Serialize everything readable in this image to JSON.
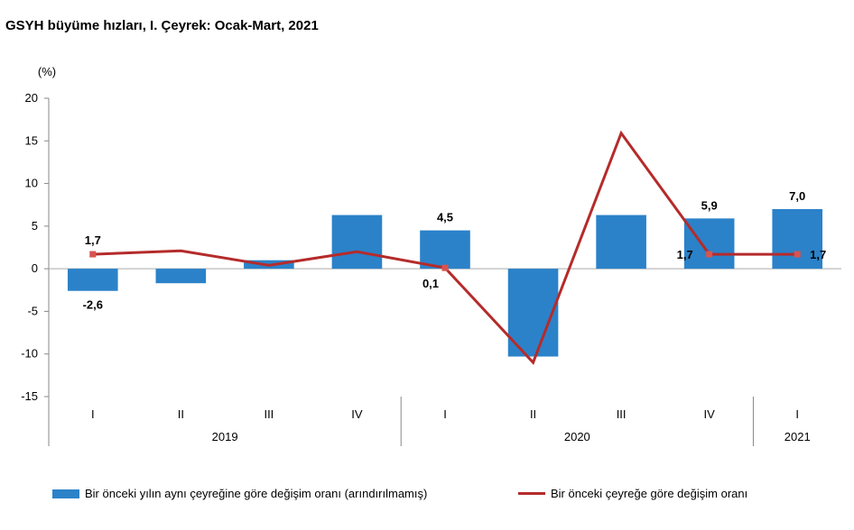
{
  "title": "GSYH büyüme hızları, I. Çeyrek: Ocak-Mart, 2021",
  "colors": {
    "bar": "#2b82c9",
    "line": "#b52b2b",
    "marker": "#d9534f",
    "axis": "#888888"
  },
  "chart_data": {
    "type": "bar+line",
    "unit_label": "(%)",
    "ylim": [
      -15,
      20
    ],
    "yticks": [
      "20",
      "15",
      "10",
      "5",
      "0",
      "-5",
      "-10",
      "-15"
    ],
    "ytick_values": [
      20,
      15,
      10,
      5,
      0,
      -5,
      -10,
      -15
    ],
    "categories": [
      "I",
      "II",
      "III",
      "IV",
      "I",
      "II",
      "III",
      "IV",
      "I"
    ],
    "years": [
      {
        "label": "2019",
        "from": 0,
        "to": 3
      },
      {
        "label": "2020",
        "from": 4,
        "to": 7
      },
      {
        "label": "2021",
        "from": 8,
        "to": 8
      }
    ],
    "series": [
      {
        "name": "Bir önceki yılın aynı çeyreğine göre değişim oranı (arındırılmamış)",
        "type": "bar",
        "values": [
          -2.6,
          -1.7,
          1.0,
          6.3,
          4.5,
          -10.3,
          6.3,
          5.9,
          7.0
        ],
        "labels": [
          "-2,6",
          "",
          "",
          "",
          "4,5",
          "",
          "",
          "5,9",
          "7,0"
        ]
      },
      {
        "name": "Bir önceki çeyreğe göre değişim oranı",
        "type": "line",
        "values": [
          1.7,
          2.1,
          0.4,
          2.0,
          0.1,
          -11.0,
          15.9,
          1.7,
          1.7
        ],
        "labels": [
          "1,7",
          "",
          "",
          "",
          "0,1",
          "",
          "",
          "1,7",
          "1,7"
        ],
        "markers": [
          true,
          false,
          false,
          false,
          true,
          false,
          false,
          true,
          true
        ]
      }
    ],
    "grid": false,
    "legend_position": "bottom"
  }
}
